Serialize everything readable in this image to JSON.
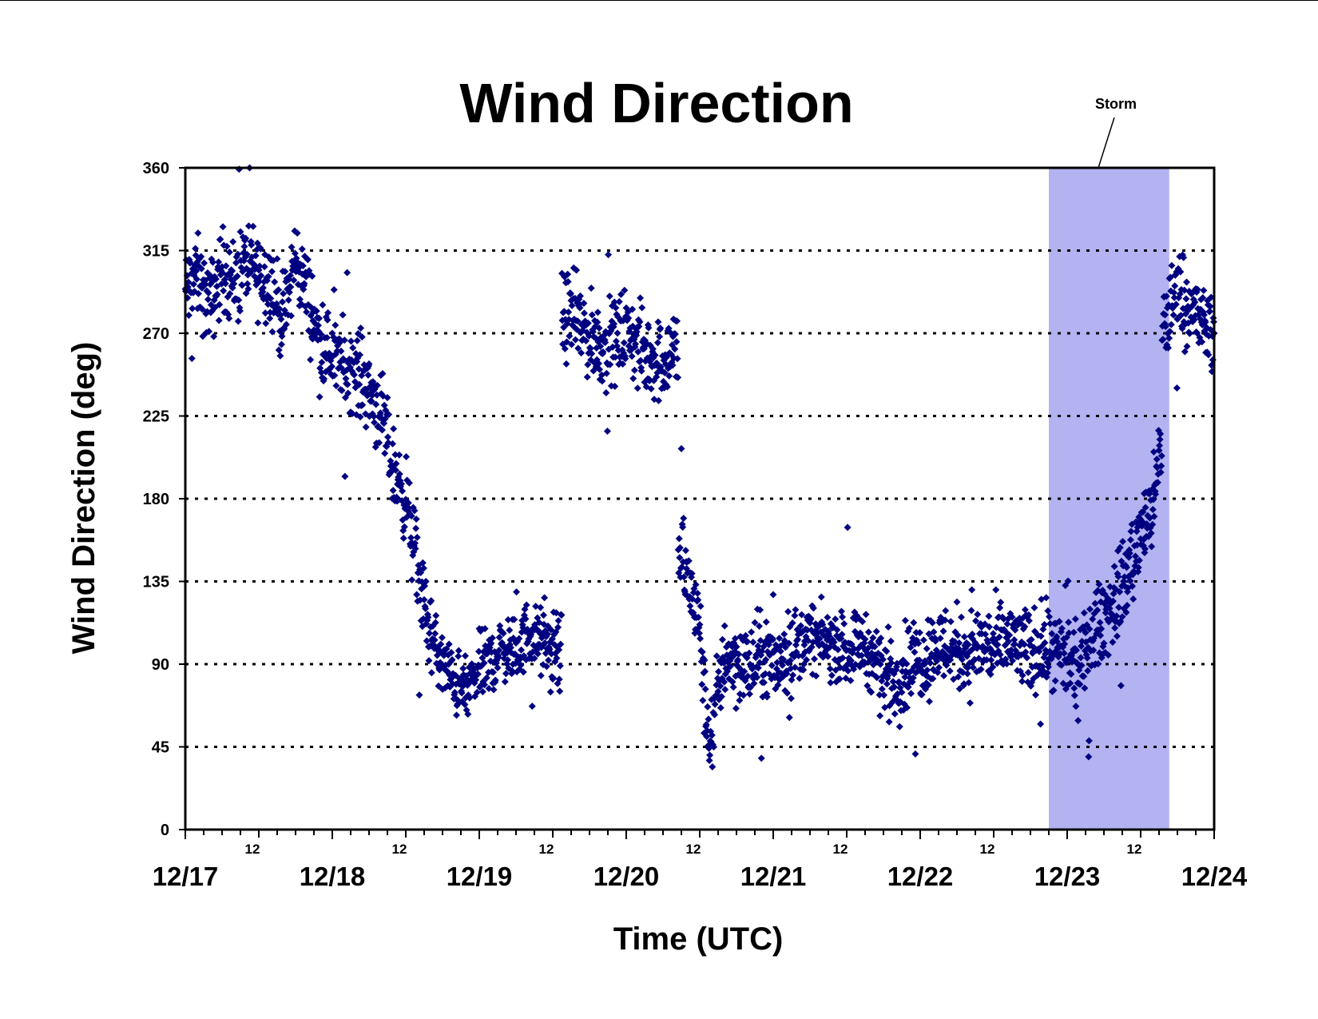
{
  "chart_data": {
    "type": "scatter",
    "title": "Wind Direction",
    "xlabel": "Time (UTC)",
    "ylabel": "Wind Direction (deg)",
    "ylim": [
      0,
      360
    ],
    "yticks": [
      "0",
      "45",
      "90",
      "135",
      "180",
      "225",
      "270",
      "315",
      "360"
    ],
    "xlim": [
      "12/17 00:00",
      "12/24 00:00"
    ],
    "xticks_major": [
      "12/17",
      "12/18",
      "12/19",
      "12/20",
      "12/21",
      "12/22",
      "12/23",
      "12/24"
    ],
    "xticks_minor_label": "12",
    "grid": "horizontal dotted lines at 45, 90, 135, 180, 225, 270, 315",
    "legend": "none",
    "marker": "diamond",
    "series": [
      {
        "color": "#000080",
        "points": [
          [
            "12/17 00:00",
            292
          ],
          [
            "12/17 02:00",
            300
          ],
          [
            "12/17 04:00",
            285
          ],
          [
            "12/17 06:00",
            305
          ],
          [
            "12/17 08:00",
            298
          ],
          [
            "12/17 10:00",
            310
          ],
          [
            "12/17 12:00",
            302
          ],
          [
            "12/17 14:00",
            298
          ],
          [
            "12/17 16:00",
            275
          ],
          [
            "12/17 18:00",
            312
          ],
          [
            "12/17 20:00",
            290
          ],
          [
            "12/17 22:00",
            265
          ],
          [
            "12/18 00:00",
            258
          ],
          [
            "12/18 02:00",
            252
          ],
          [
            "12/18 04:00",
            250
          ],
          [
            "12/18 06:00",
            240
          ],
          [
            "12/18 08:00",
            225
          ],
          [
            "12/18 10:00",
            195
          ],
          [
            "12/18 12:00",
            180
          ],
          [
            "12/18 14:00",
            140
          ],
          [
            "12/18 16:00",
            105
          ],
          [
            "12/18 18:00",
            90
          ],
          [
            "12/18 20:00",
            80
          ],
          [
            "12/18 22:00",
            75
          ],
          [
            "12/19 00:00",
            88
          ],
          [
            "12/19 02:00",
            92
          ],
          [
            "12/19 04:00",
            100
          ],
          [
            "12/19 06:00",
            95
          ],
          [
            "12/19 08:00",
            108
          ],
          [
            "12/19 10:00",
            102
          ],
          [
            "12/19 12:00",
            96
          ],
          [
            "12/19 15:00",
            280
          ],
          [
            "12/19 18:00",
            268
          ],
          [
            "12/19 21:00",
            262
          ],
          [
            "12/20 00:00",
            272
          ],
          [
            "12/20 03:00",
            258
          ],
          [
            "12/20 06:00",
            255
          ],
          [
            "12/20 08:00",
            262
          ],
          [
            "12/20 09:00",
            150
          ],
          [
            "12/20 10:30",
            130
          ],
          [
            "12/20 12:00",
            110
          ],
          [
            "12/20 13:00",
            60
          ],
          [
            "12/20 14:00",
            50
          ],
          [
            "12/20 15:00",
            75
          ],
          [
            "12/20 16:00",
            95
          ],
          [
            "12/20 18:00",
            92
          ],
          [
            "12/20 20:00",
            88
          ],
          [
            "12/20 22:00",
            95
          ],
          [
            "12/21 00:00",
            90
          ],
          [
            "12/21 02:00",
            95
          ],
          [
            "12/21 04:00",
            100
          ],
          [
            "12/21 06:00",
            105
          ],
          [
            "12/21 08:00",
            102
          ],
          [
            "12/21 10:00",
            100
          ],
          [
            "12/21 12:00",
            98
          ],
          [
            "12/21 14:00",
            102
          ],
          [
            "12/21 16:00",
            95
          ],
          [
            "12/21 18:00",
            85
          ],
          [
            "12/21 20:00",
            82
          ],
          [
            "12/21 22:00",
            90
          ],
          [
            "12/22 00:00",
            92
          ],
          [
            "12/22 02:00",
            98
          ],
          [
            "12/22 04:00",
            100
          ],
          [
            "12/22 06:00",
            98
          ],
          [
            "12/22 08:00",
            96
          ],
          [
            "12/22 10:00",
            100
          ],
          [
            "12/22 12:00",
            98
          ],
          [
            "12/22 14:00",
            102
          ],
          [
            "12/22 16:00",
            100
          ],
          [
            "12/22 18:00",
            96
          ],
          [
            "12/22 20:00",
            100
          ],
          [
            "12/22 22:00",
            95
          ],
          [
            "12/23 00:00",
            92
          ],
          [
            "12/23 02:00",
            85
          ],
          [
            "12/23 04:00",
            105
          ],
          [
            "12/23 06:00",
            115
          ],
          [
            "12/23 08:00",
            125
          ],
          [
            "12/23 10:00",
            140
          ],
          [
            "12/23 12:00",
            160
          ],
          [
            "12/23 14:00",
            175
          ],
          [
            "12/23 15:00",
            200
          ],
          [
            "12/23 16:00",
            275
          ],
          [
            "12/23 18:00",
            295
          ],
          [
            "12/23 20:00",
            285
          ],
          [
            "12/23 22:00",
            275
          ],
          [
            "12/24 00:00",
            270
          ]
        ]
      }
    ],
    "shaded_region": {
      "start": "12/22 21:00",
      "end": "12/23 16:40",
      "color": "#b3b3f2",
      "label": "Storm"
    }
  }
}
